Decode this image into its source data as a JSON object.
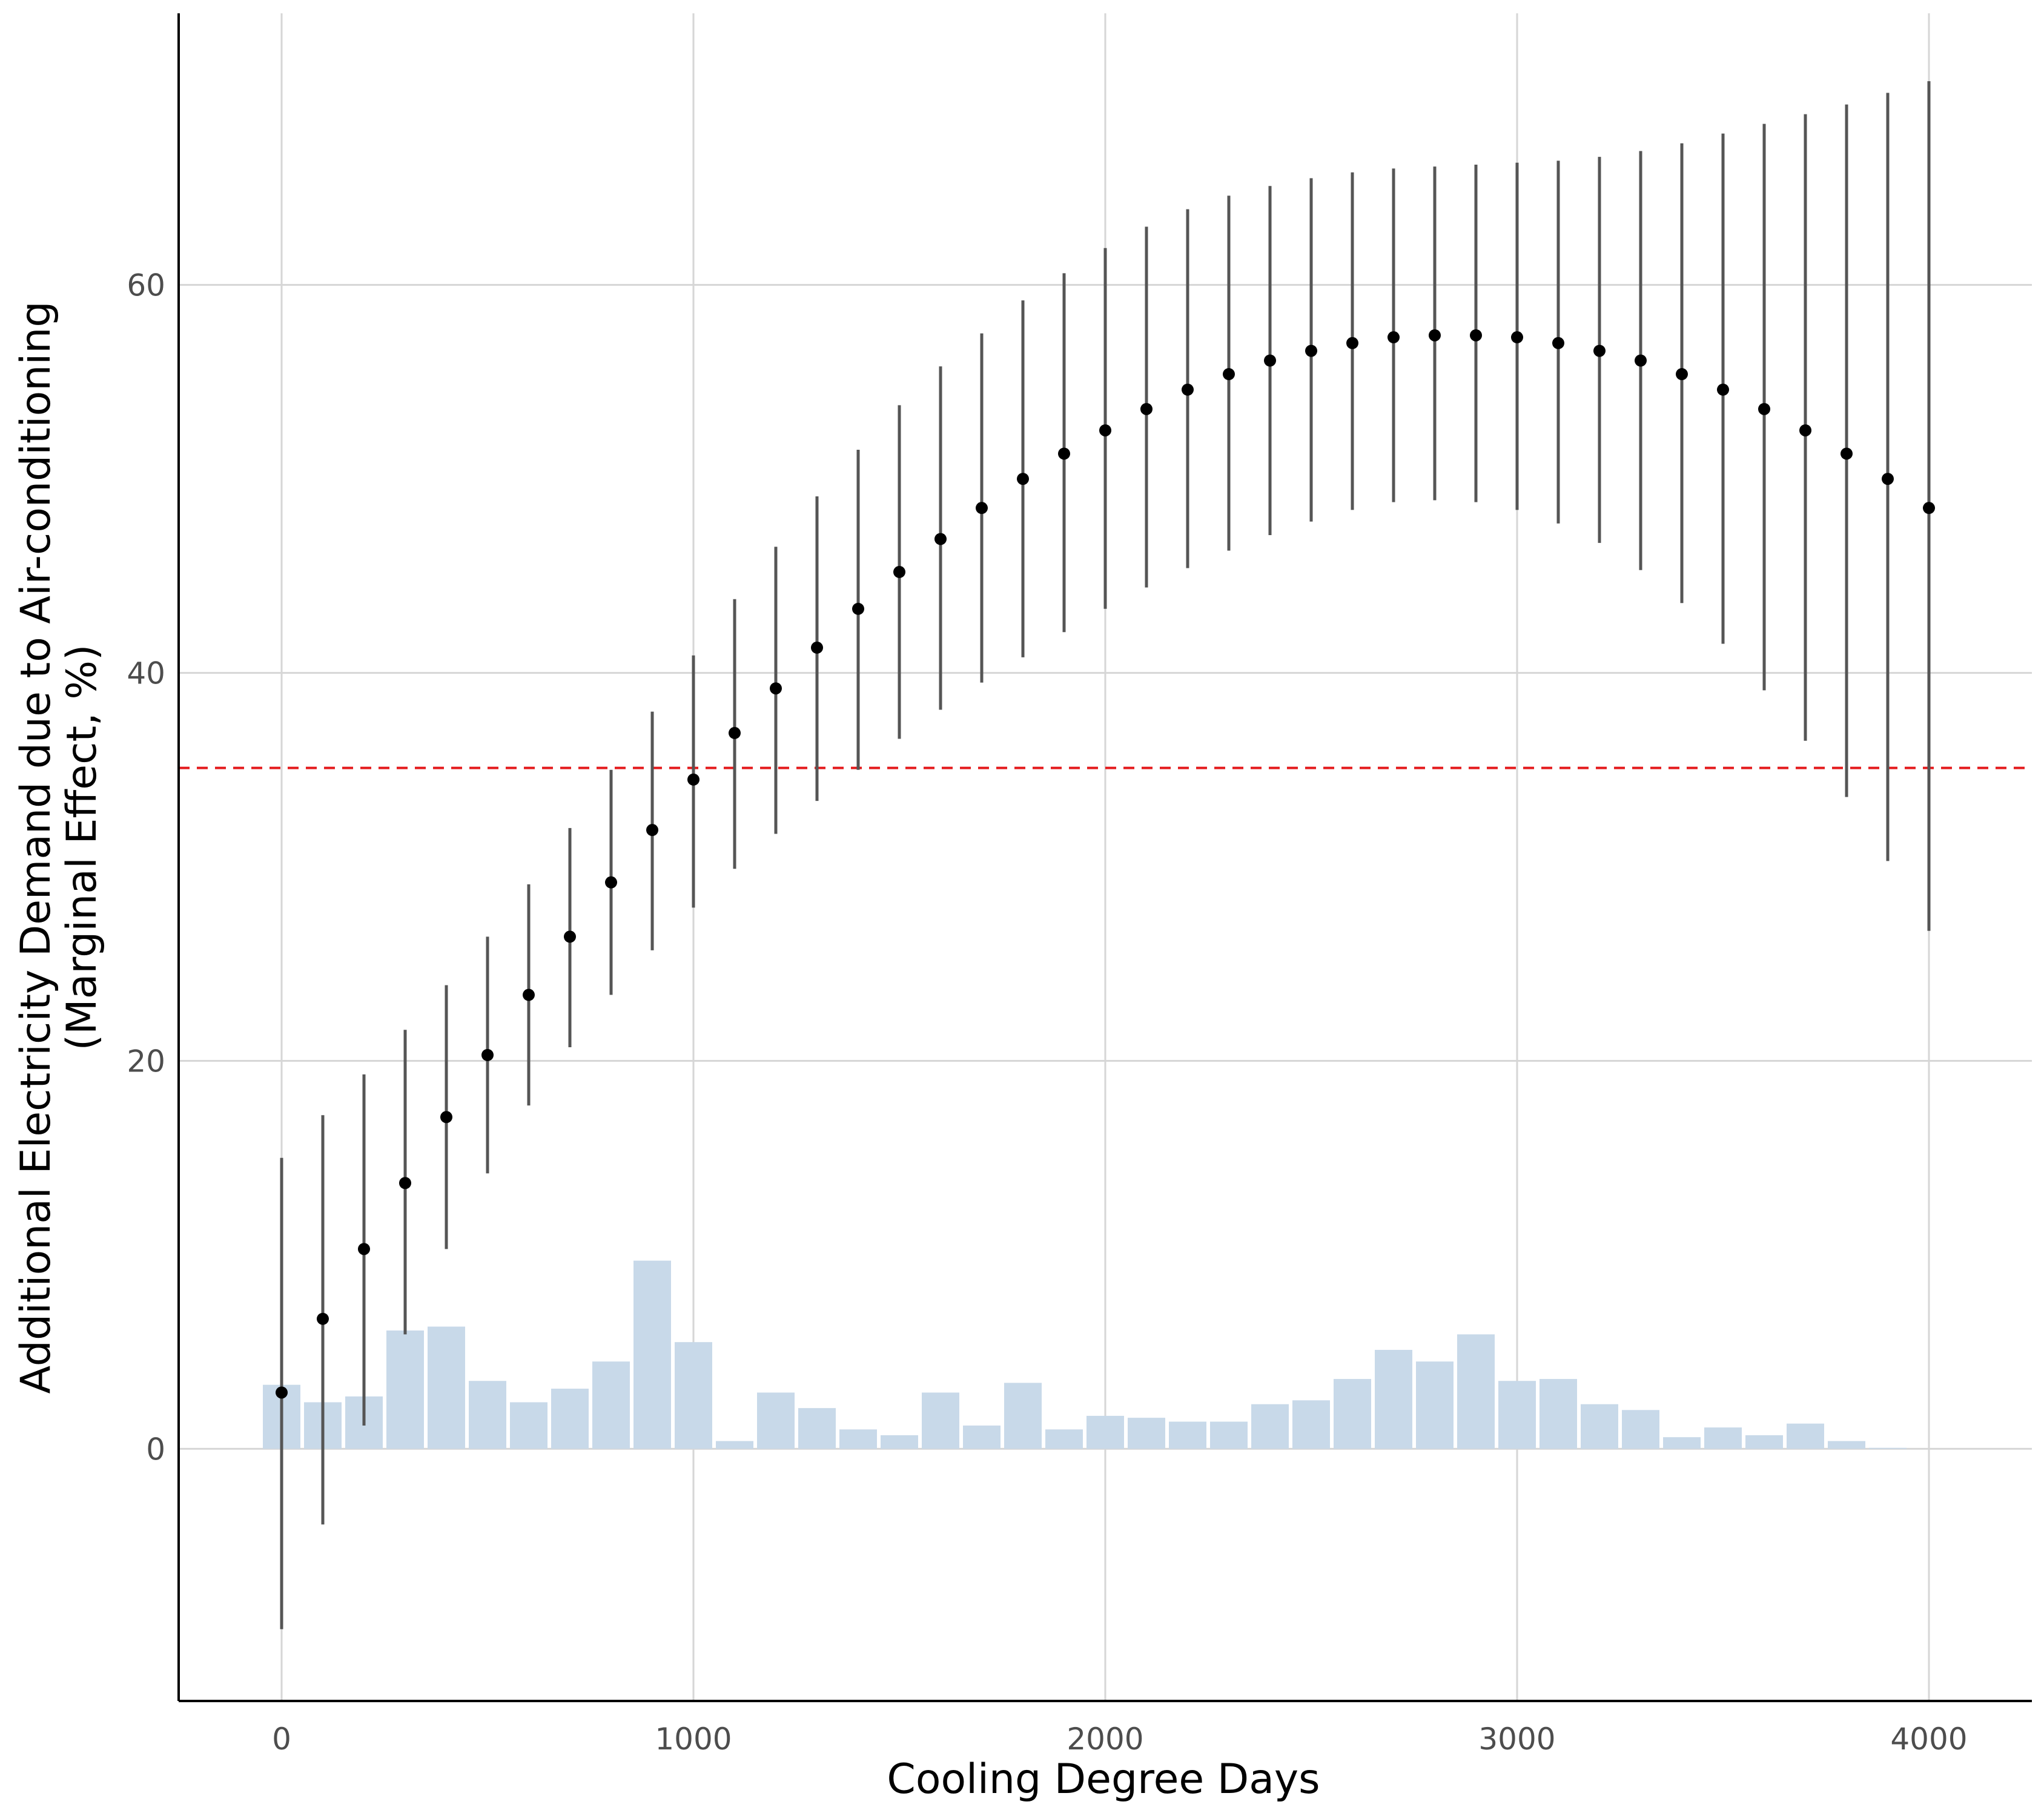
{
  "chart_data": {
    "type": "scatter",
    "xlabel": "Cooling Degree Days",
    "ylabel_lines": [
      "Additional Electricity Demand due to Air-conditioning",
      "(Marginal Effect, %)"
    ],
    "xlim": [
      -250,
      4250
    ],
    "ylim": [
      -13,
      74
    ],
    "x_ticks": [
      0,
      1000,
      2000,
      3000,
      4000
    ],
    "y_ticks": [
      0,
      20,
      40,
      60
    ],
    "x_tick_labels": [
      "0",
      "1000",
      "2000",
      "3000",
      "4000"
    ],
    "y_tick_labels": [
      "0",
      "20",
      "40",
      "60"
    ],
    "grid": true,
    "reference_line": {
      "y": 35.1,
      "style": "dashed",
      "color": "#e41a1c"
    },
    "series": [
      {
        "type": "point_range",
        "x": [
          0,
          100,
          200,
          300,
          400,
          500,
          600,
          700,
          800,
          900,
          1000,
          1100,
          1200,
          1300,
          1400,
          1500,
          1600,
          1700,
          1800,
          1900,
          2000,
          2100,
          2200,
          2300,
          2400,
          2500,
          2600,
          2700,
          2800,
          2900,
          3000,
          3100,
          3200,
          3300,
          3400,
          3500,
          3600,
          3700,
          3800,
          3900,
          4000
        ],
        "estimate": [
          2.9,
          6.7,
          10.3,
          13.7,
          17.1,
          20.3,
          23.4,
          26.4,
          29.2,
          31.9,
          34.5,
          36.9,
          39.2,
          41.3,
          43.3,
          45.2,
          46.9,
          48.5,
          50.0,
          51.3,
          52.5,
          53.6,
          54.6,
          55.4,
          56.1,
          56.6,
          57.0,
          57.3,
          57.4,
          57.4,
          57.3,
          57.0,
          56.6,
          56.1,
          55.4,
          54.6,
          53.6,
          52.5,
          51.3,
          50.0,
          48.5
        ],
        "lower": [
          -9.3,
          -3.9,
          1.2,
          5.9,
          10.3,
          14.2,
          17.7,
          20.7,
          23.4,
          25.7,
          27.9,
          29.9,
          31.7,
          33.4,
          35.0,
          36.6,
          38.1,
          39.5,
          40.8,
          42.1,
          43.3,
          44.4,
          45.4,
          46.3,
          47.1,
          47.8,
          48.4,
          48.8,
          48.9,
          48.8,
          48.4,
          47.7,
          46.7,
          45.3,
          43.6,
          41.5,
          39.1,
          36.5,
          33.6,
          30.3,
          26.7
        ],
        "upper": [
          15.0,
          17.2,
          19.3,
          21.6,
          23.9,
          26.4,
          29.1,
          32.0,
          35.0,
          38.0,
          40.9,
          43.8,
          46.5,
          49.1,
          51.5,
          53.8,
          55.8,
          57.5,
          59.2,
          60.6,
          61.9,
          63.0,
          63.9,
          64.6,
          65.1,
          65.5,
          65.8,
          66.0,
          66.1,
          66.2,
          66.3,
          66.4,
          66.6,
          66.9,
          67.3,
          67.8,
          68.3,
          68.8,
          69.3,
          69.9,
          70.5
        ],
        "point_color": "#000000",
        "range_color": "#555555"
      },
      {
        "type": "bar",
        "x": [
          0,
          100,
          200,
          300,
          400,
          500,
          600,
          700,
          800,
          900,
          1000,
          1100,
          1200,
          1300,
          1400,
          1500,
          1600,
          1700,
          1800,
          1900,
          2000,
          2100,
          2200,
          2300,
          2400,
          2500,
          2600,
          2700,
          2800,
          2900,
          3000,
          3100,
          3200,
          3300,
          3400,
          3500,
          3600,
          3700,
          3800,
          3900
        ],
        "values": [
          3.3,
          2.4,
          2.7,
          6.1,
          6.3,
          3.5,
          2.4,
          3.1,
          4.5,
          9.7,
          5.5,
          0.4,
          2.9,
          2.1,
          1.0,
          0.7,
          2.9,
          1.2,
          3.4,
          1.0,
          1.7,
          1.6,
          1.4,
          1.4,
          2.3,
          2.5,
          3.6,
          5.1,
          4.5,
          5.9,
          3.5,
          3.6,
          2.3,
          2.0,
          0.6,
          1.1,
          0.7,
          1.3,
          0.4,
          0.05
        ],
        "color": "#c8d9e9"
      }
    ]
  }
}
